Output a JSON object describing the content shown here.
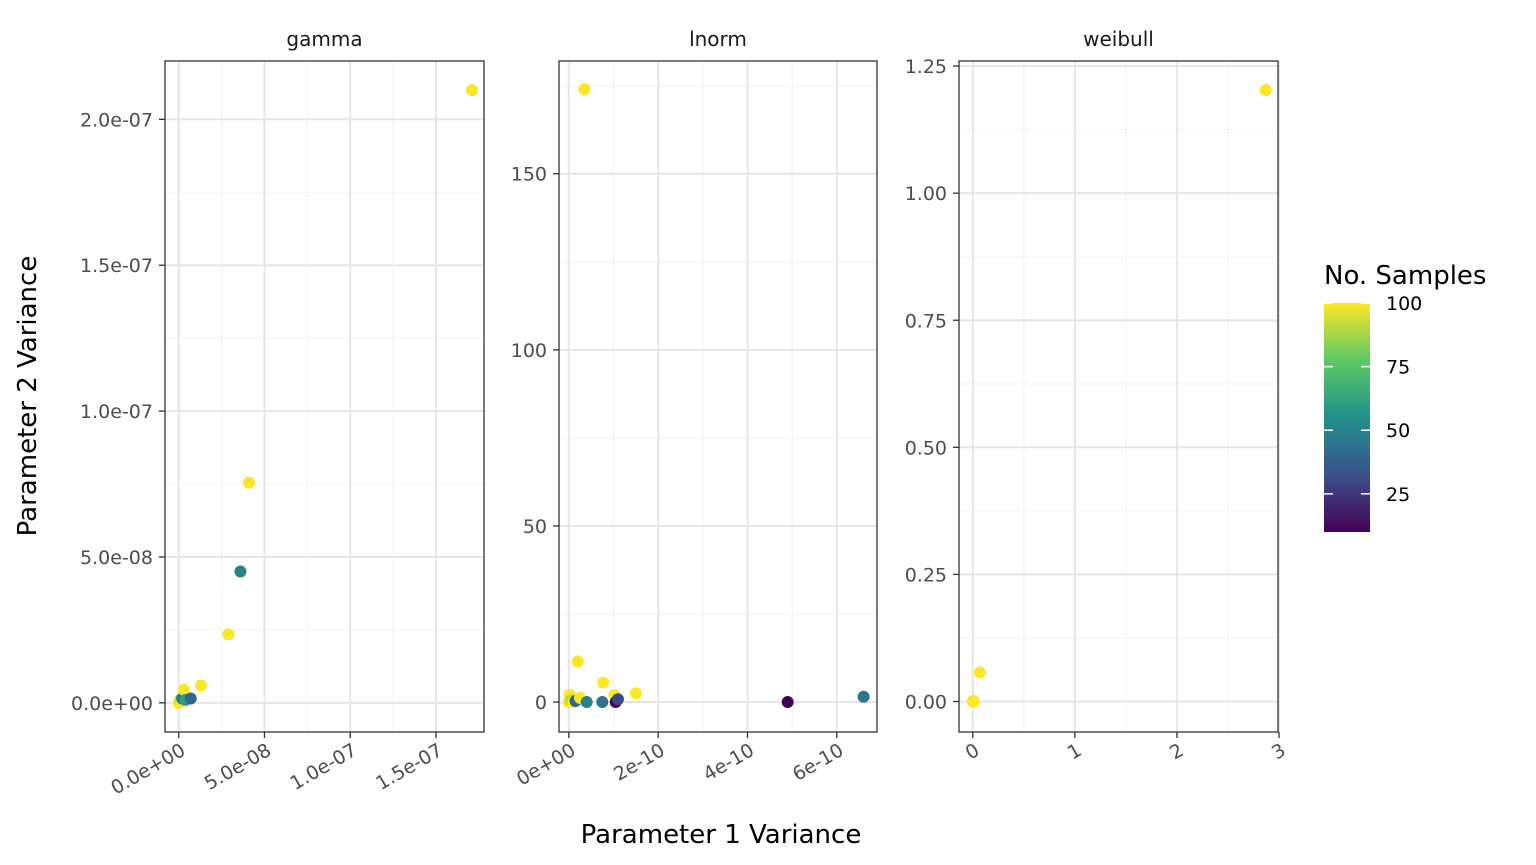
{
  "chart_data": {
    "type": "scatter",
    "xlabel": "Parameter 1 Variance",
    "ylabel": "Parameter 2 Variance",
    "legend": {
      "title": "No. Samples",
      "placement": "right",
      "range": [
        10,
        100
      ],
      "breaks": [
        25,
        50,
        75,
        100
      ],
      "break_labels": [
        "25",
        "50",
        "75",
        "100"
      ],
      "colors": [
        "#440154",
        "#3b528b",
        "#21908c",
        "#5dc963",
        "#fde725"
      ]
    },
    "grid": true,
    "panels": [
      {
        "name": "gamma",
        "xlim": [
          -8e-09,
          1.78e-07
        ],
        "ylim": [
          -1e-08,
          2.2e-07
        ],
        "x_major_ticks": [
          0,
          5e-08,
          1e-07,
          1.5e-07
        ],
        "x_tick_labels": [
          "0.0e+00",
          "5.0e-08",
          "1.0e-07",
          "1.5e-07"
        ],
        "y_major_ticks": [
          0,
          5e-08,
          1e-07,
          1.5e-07,
          2e-07
        ],
        "y_tick_labels": [
          "0.0e+00",
          "5.0e-08",
          "1.0e-07",
          "1.5e-07",
          "2.0e-07"
        ],
        "x_minor_ticks": [
          2.5e-08,
          7.5e-08,
          1.25e-07
        ],
        "y_minor_ticks": [
          2.5e-08,
          7.5e-08,
          1.25e-07,
          1.75e-07
        ],
        "points": [
          {
            "x": 0,
            "y": 0,
            "n": 100
          },
          {
            "x": 5e-10,
            "y": 5e-10,
            "n": 100
          },
          {
            "x": 1e-09,
            "y": 1e-09,
            "n": 90
          },
          {
            "x": 1.5e-09,
            "y": 5e-10,
            "n": 100
          },
          {
            "x": 2e-09,
            "y": 1.5e-09,
            "n": 45
          },
          {
            "x": 3e-09,
            "y": 4.5e-09,
            "n": 100
          },
          {
            "x": 4e-09,
            "y": 1e-09,
            "n": 60
          },
          {
            "x": 7e-09,
            "y": 1.5e-09,
            "n": 40
          },
          {
            "x": 1.3e-08,
            "y": 6e-09,
            "n": 100
          },
          {
            "x": 2.9e-08,
            "y": 2.35e-08,
            "n": 100
          },
          {
            "x": 3.6e-08,
            "y": 4.5e-08,
            "n": 50
          },
          {
            "x": 4.1e-08,
            "y": 7.55e-08,
            "n": 100
          },
          {
            "x": 1.71e-07,
            "y": 2.1e-07,
            "n": 100
          }
        ]
      },
      {
        "name": "lnorm",
        "xlim": [
          -2.2e-11,
          6.9e-10
        ],
        "ylim": [
          -8.5,
          182
        ],
        "x_major_ticks": [
          0,
          2e-10,
          4e-10,
          6e-10
        ],
        "x_tick_labels": [
          "0e+00",
          "2e-10",
          "4e-10",
          "6e-10"
        ],
        "y_major_ticks": [
          0,
          50,
          100,
          150
        ],
        "y_tick_labels": [
          "0",
          "50",
          "100",
          "150"
        ],
        "x_minor_ticks": [
          1e-10,
          3e-10,
          5e-10
        ],
        "y_minor_ticks": [
          25,
          75,
          125,
          175
        ],
        "points": [
          {
            "x": 0,
            "y": 0,
            "n": 100
          },
          {
            "x": 2e-12,
            "y": 2,
            "n": 100
          },
          {
            "x": 5e-12,
            "y": 0.5,
            "n": 90
          },
          {
            "x": 1e-11,
            "y": 0,
            "n": 100
          },
          {
            "x": 1.5e-11,
            "y": 0.3,
            "n": 40
          },
          {
            "x": 2e-11,
            "y": 11.5,
            "n": 100
          },
          {
            "x": 2.5e-11,
            "y": 1.2,
            "n": 100
          },
          {
            "x": 3.5e-11,
            "y": 174,
            "n": 100
          },
          {
            "x": 4e-11,
            "y": 0,
            "n": 50
          },
          {
            "x": 7.5e-11,
            "y": 0,
            "n": 45
          },
          {
            "x": 7.7e-11,
            "y": 5.5,
            "n": 100
          },
          {
            "x": 1.02e-10,
            "y": 2,
            "n": 100
          },
          {
            "x": 1.05e-10,
            "y": 0,
            "n": 10
          },
          {
            "x": 1.1e-10,
            "y": 0.8,
            "n": 30
          },
          {
            "x": 1.5e-10,
            "y": 2.5,
            "n": 100
          },
          {
            "x": 4.9e-10,
            "y": 0,
            "n": 10
          },
          {
            "x": 6.6e-10,
            "y": 1.5,
            "n": 45
          }
        ]
      },
      {
        "name": "weibull",
        "xlim": [
          -0.135,
          2.99
        ],
        "ylim": [
          -0.06,
          1.26
        ],
        "x_major_ticks": [
          0,
          1,
          2,
          3
        ],
        "x_tick_labels": [
          "0",
          "1",
          "2",
          "3"
        ],
        "y_major_ticks": [
          0,
          0.25,
          0.5,
          0.75,
          1,
          1.25
        ],
        "y_tick_labels": [
          "0.00",
          "0.25",
          "0.50",
          "0.75",
          "1.00",
          "1.25"
        ],
        "x_minor_ticks": [
          0.5,
          1.5,
          2.5
        ],
        "y_minor_ticks": [
          0.125,
          0.375,
          0.625,
          0.875,
          1.125
        ],
        "points": [
          {
            "x": 0,
            "y": 0,
            "n": 100
          },
          {
            "x": 0.005,
            "y": 0.001,
            "n": 95
          },
          {
            "x": 0.01,
            "y": 0,
            "n": 100
          },
          {
            "x": 0.07,
            "y": 0.057,
            "n": 100
          },
          {
            "x": 2.87,
            "y": 1.203,
            "n": 100
          }
        ]
      }
    ]
  }
}
